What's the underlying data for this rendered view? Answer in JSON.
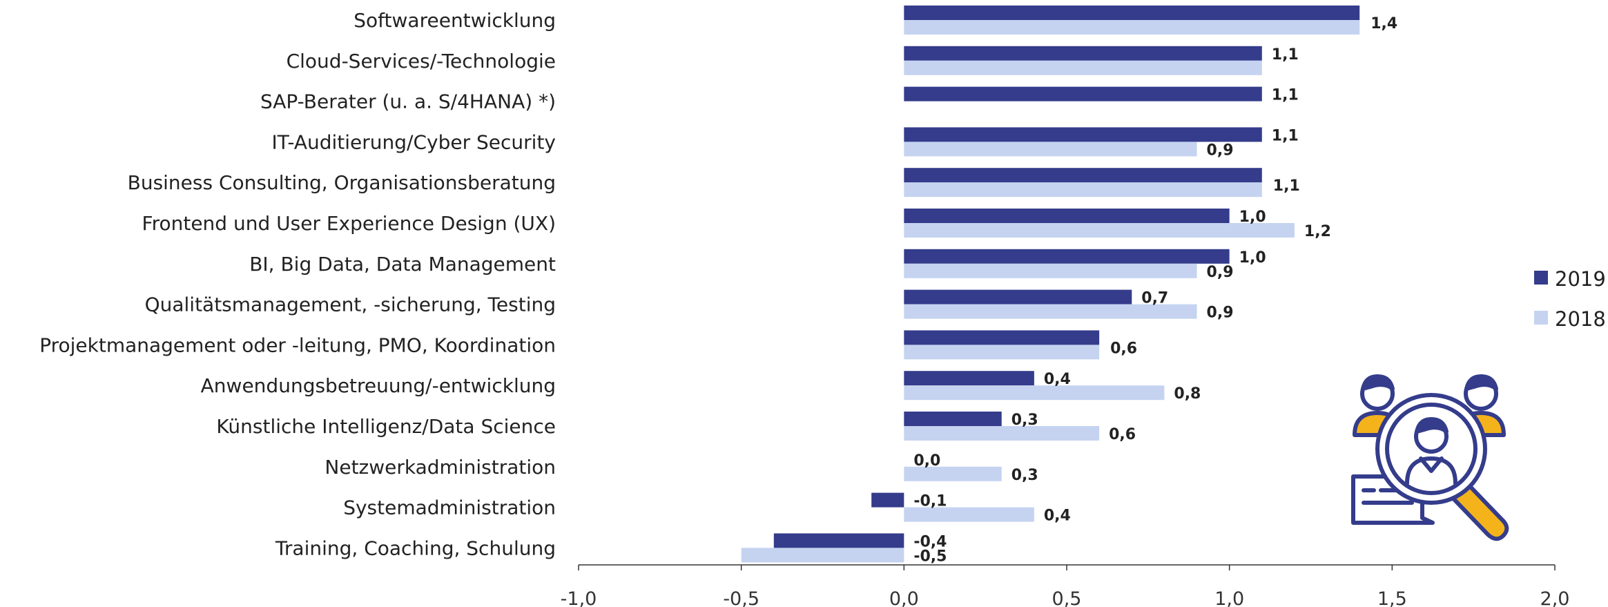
{
  "chart_data": {
    "type": "bar",
    "orientation": "horizontal",
    "categories": [
      "Softwareentwicklung",
      "Cloud-Services/-Technologie",
      "SAP-Berater (u. a. S/4HANA) *)",
      "IT-Auditierung/Cyber Security",
      "Business Consulting, Organisationsberatung",
      "Frontend und User Experience Design (UX)",
      "BI, Big Data, Data Management",
      "Qualitätsmanagement, -sicherung, Testing",
      "Projektmanagement oder -leitung, PMO, Koordination",
      "Anwendungsbetreuung/-entwicklung",
      "Künstliche Intelligenz/Data Science",
      "Netzwerkadministration",
      "Systemadministration",
      "Training, Coaching, Schulung"
    ],
    "series": [
      {
        "name": "2019",
        "color": "#343c8b",
        "values": [
          1.4,
          1.1,
          1.1,
          1.1,
          1.1,
          1.0,
          1.0,
          0.7,
          0.6,
          0.4,
          0.3,
          0.0,
          -0.1,
          -0.4
        ],
        "labels": [
          "",
          "1,1",
          "1,1",
          "1,1",
          "",
          "1,0",
          "1,0",
          "0,7",
          "",
          "0,4",
          "0,3",
          "0,0",
          "-0,1",
          "-0,4"
        ]
      },
      {
        "name": "2018",
        "color": "#c5d3f1",
        "values": [
          1.4,
          1.1,
          null,
          0.9,
          1.1,
          1.2,
          0.9,
          0.9,
          0.6,
          0.8,
          0.6,
          0.3,
          0.4,
          -0.5
        ],
        "labels": [
          "",
          "",
          "",
          "0,9",
          "",
          "1,2",
          "0,9",
          "0,9",
          "",
          "0,8",
          "0,6",
          "0,3",
          "0,4",
          "-0,5"
        ]
      }
    ],
    "combined_labels": [
      "1,4",
      "",
      "",
      "",
      "1,1",
      "",
      "",
      "",
      "0,6",
      "",
      "",
      "",
      "",
      ""
    ],
    "xlim": [
      -1.0,
      2.0
    ],
    "xticks": [
      -1.0,
      -0.5,
      0.0,
      0.5,
      1.0,
      1.5,
      2.0
    ],
    "xtick_labels": [
      "-1,0",
      "-0,5",
      "0,0",
      "0,5",
      "1,0",
      "1,5",
      "2,0"
    ],
    "title": "",
    "xlabel": "",
    "ylabel": "",
    "grid": false,
    "legend": {
      "placement": "right",
      "entries": [
        {
          "label": "2019",
          "color": "#343c8b"
        },
        {
          "label": "2018",
          "color": "#c5d3f1"
        }
      ]
    }
  },
  "decoration": {
    "icon": "talent-search-icon",
    "outline_color": "#343c8b",
    "accent_color": "#f5b31b"
  }
}
